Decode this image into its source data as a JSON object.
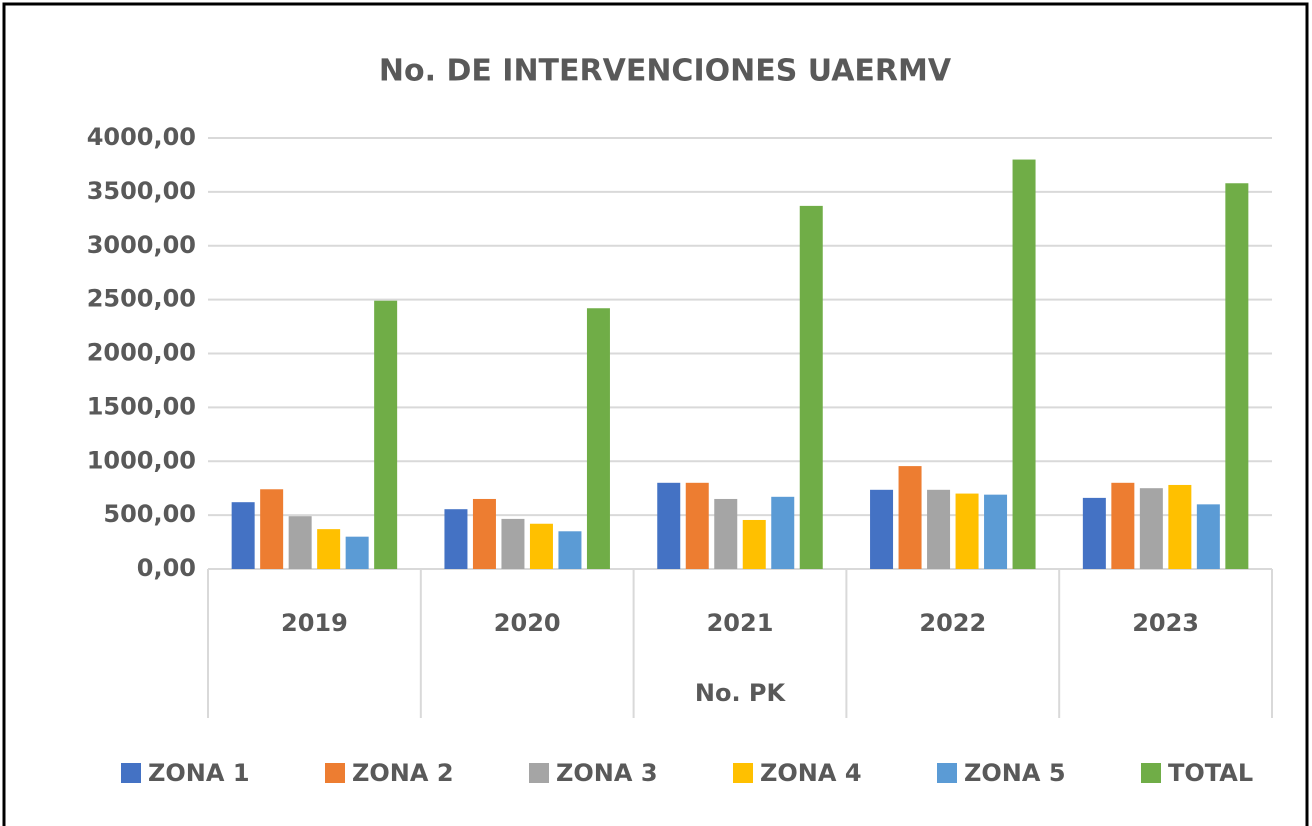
{
  "chart_data": {
    "type": "bar",
    "title": "No. DE INTERVENCIONES UAERMV",
    "x_label": "No. PK",
    "categories": [
      "2019",
      "2020",
      "2021",
      "2022",
      "2023"
    ],
    "series": [
      {
        "name": "ZONA 1",
        "color": "#4472c4",
        "values": [
          620,
          555,
          800,
          735,
          660
        ]
      },
      {
        "name": "ZONA 2",
        "color": "#ed7d31",
        "values": [
          740,
          650,
          800,
          955,
          800
        ]
      },
      {
        "name": "ZONA 3",
        "color": "#a5a5a5",
        "values": [
          490,
          465,
          650,
          735,
          750
        ]
      },
      {
        "name": "ZONA 4",
        "color": "#ffc000",
        "values": [
          370,
          420,
          455,
          700,
          780
        ]
      },
      {
        "name": "ZONA 5",
        "color": "#5b9bd5",
        "values": [
          300,
          350,
          670,
          690,
          600
        ]
      },
      {
        "name": "TOTAL",
        "color": "#70ad47",
        "values": [
          2490,
          2420,
          3370,
          3800,
          3580
        ]
      }
    ],
    "ylim": [
      0,
      4000
    ],
    "yticks": [
      {
        "value": 0,
        "label": "0,00"
      },
      {
        "value": 500,
        "label": "500,00"
      },
      {
        "value": 1000,
        "label": "1000,00"
      },
      {
        "value": 1500,
        "label": "1500,00"
      },
      {
        "value": 2000,
        "label": "2000,00"
      },
      {
        "value": 2500,
        "label": "2500,00"
      },
      {
        "value": 3000,
        "label": "3000,00"
      },
      {
        "value": 3500,
        "label": "3500,00"
      },
      {
        "value": 4000,
        "label": "4000,00"
      }
    ],
    "grid": true,
    "legend": "bottom"
  }
}
